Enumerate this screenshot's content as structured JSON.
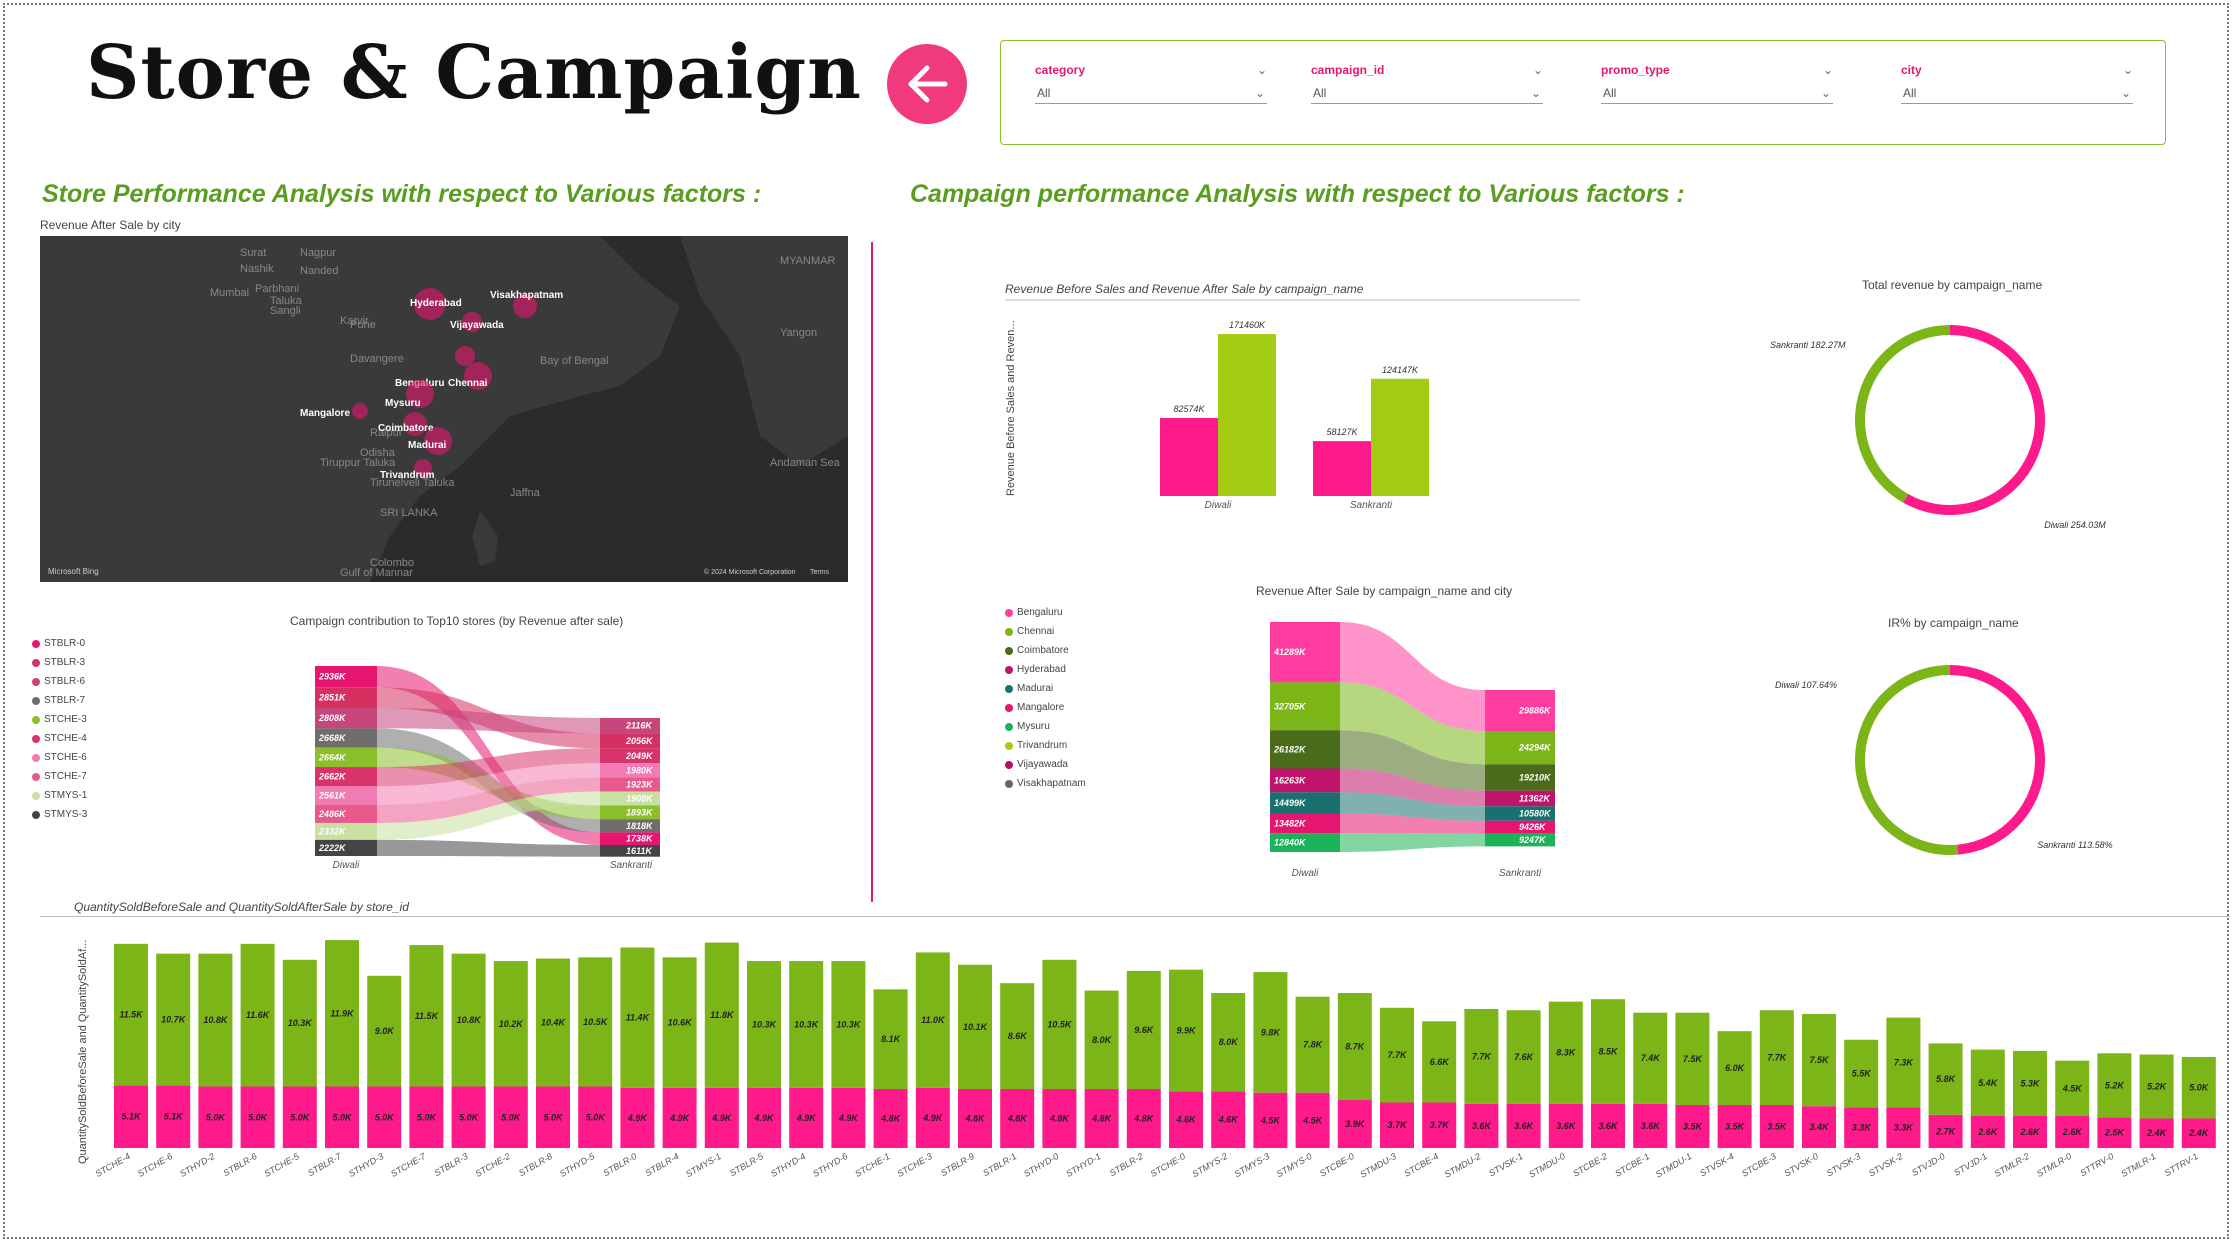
{
  "header": {
    "title": "Store & Campaign",
    "back_icon": "arrow-left-icon"
  },
  "slicers": [
    {
      "label": "category",
      "value": "All"
    },
    {
      "label": "campaign_id",
      "value": "All"
    },
    {
      "label": "promo_type",
      "value": "All"
    },
    {
      "label": "city",
      "value": "All"
    }
  ],
  "sections": {
    "store": "Store Performance Analysis with respect to Various factors :",
    "campaign": "Campaign performance Analysis with respect to Various factors :"
  },
  "map": {
    "title": "Revenue After Sale by city",
    "cities": [
      "Hyderabad",
      "Visakhapatnam",
      "Vijayawada",
      "Bengaluru",
      "Chennai",
      "Mysuru",
      "Mangalore",
      "Coimbatore",
      "Madurai",
      "Trivandrum"
    ],
    "base_labels": [
      "Surat",
      "Nagpur",
      "Nashik",
      "Nanded",
      "Mumbai",
      "Parbhani",
      "Pune",
      "Taluka",
      "Sangli",
      "Karvir",
      "Davangere",
      "Raipur",
      "Odisha",
      "Tiruppur Taluka",
      "Tirunelveli Taluka",
      "SRI LANKA",
      "Colombo",
      "Jaffna",
      "MYANMAR",
      "Yangon",
      "Bay of Bengal",
      "Andaman Sea",
      "Gulf of Mannar"
    ],
    "attribution_left": "Microsoft Bing",
    "attribution_right": "© 2024 Microsoft Corporation",
    "terms": "Terms"
  },
  "chart_data": [
    {
      "id": "top10_stores_ribbon",
      "type": "ribbon",
      "title": "Campaign contribution to Top10 stores (by Revenue after sale)",
      "categories": [
        "Diwali",
        "Sankranti"
      ],
      "legend": [
        "STBLR-0",
        "STBLR-3",
        "STBLR-6",
        "STBLR-7",
        "STCHE-3",
        "STCHE-4",
        "STCHE-6",
        "STCHE-7",
        "STMYS-1",
        "STMYS-3"
      ],
      "colors": [
        "#e6156f",
        "#d63060",
        "#c4467a",
        "#6e6e6e",
        "#8bbf2b",
        "#d8336b",
        "#f27bb3",
        "#e85a8c",
        "#c9e0a3",
        "#444444"
      ],
      "diwali_labels": [
        "2936K",
        "2851K",
        "2808K",
        "2668K",
        "2664K",
        "2662K",
        "2561K",
        "2486K",
        "2332K",
        "2222K"
      ],
      "sankranti_labels": [
        "2116K",
        "2056K",
        "2049K",
        "1980K",
        "1923K",
        "1908K",
        "1893K",
        "1818K",
        "1738K",
        "1611K"
      ],
      "diwali_values": [
        2936,
        2851,
        2808,
        2668,
        2664,
        2662,
        2561,
        2486,
        2332,
        2222
      ],
      "sankranti_values": [
        2116,
        2056,
        2049,
        1980,
        1923,
        1908,
        1893,
        1818,
        1738,
        1611
      ]
    },
    {
      "id": "rev_before_after",
      "type": "bar",
      "title": "Revenue Before Sales and Revenue After Sale by campaign_name",
      "ylabel": "Revenue Before Sales and Reven...",
      "categories": [
        "Diwali",
        "Sankranti"
      ],
      "series": [
        {
          "name": "Revenue Before Sales",
          "color": "#ff1a8c",
          "values": [
            82574,
            58127
          ],
          "labels": [
            "82574K",
            "58127K"
          ]
        },
        {
          "name": "Revenue After Sale",
          "color": "#a4cc14",
          "values": [
            171460,
            124147
          ],
          "labels": [
            "171460K",
            "124147K"
          ]
        }
      ]
    },
    {
      "id": "total_revenue_donut",
      "type": "pie",
      "title": "Total revenue by campaign_name",
      "slices": [
        {
          "label": "Diwali 254.03M",
          "value": 254.03,
          "color": "#ff1a8c"
        },
        {
          "label": "Sankranti 182.27M",
          "value": 182.27,
          "color": "#7cb518"
        }
      ]
    },
    {
      "id": "rev_after_city_ribbon",
      "type": "ribbon",
      "title": "Revenue After Sale by campaign_name and city",
      "categories": [
        "Diwali",
        "Sankranti"
      ],
      "legend": [
        "Bengaluru",
        "Chennai",
        "Coimbatore",
        "Hyderabad",
        "Madurai",
        "Mangalore",
        "Mysuru",
        "Trivandrum",
        "Vijayawada",
        "Visakhapatnam"
      ],
      "colors": [
        "#ff3da0",
        "#7cb518",
        "#4a6b1a",
        "#c0136b",
        "#1a6f6f",
        "#e6156f",
        "#1db25a",
        "#a4cc14",
        "#b8105e",
        "#666666"
      ],
      "diwali_labels": [
        "41289K",
        "32705K",
        "26182K",
        "16263K",
        "14499K",
        "13482K",
        "12840K"
      ],
      "sankranti_labels": [
        "29886K",
        "24294K",
        "19210K",
        "11362K",
        "10580K",
        "9426K",
        "9247K"
      ]
    },
    {
      "id": "ir_donut",
      "type": "pie",
      "title": "IR% by campaign_name",
      "slices": [
        {
          "label": "Diwali 107.64%",
          "value": 107.64,
          "color": "#ff1a8c"
        },
        {
          "label": "Sankranti 113.58%",
          "value": 113.58,
          "color": "#7cb518"
        }
      ]
    },
    {
      "id": "qty_by_store",
      "type": "bar",
      "title": "QuantitySoldBeforeSale and QuantitySoldAfterSale by store_id",
      "ylabel": "QuantitySoldBeforeSale and QuantitySoldAf...",
      "categories": [
        "STCHE-4",
        "STCHE-6",
        "STHYD-2",
        "STBLR-6",
        "STCHE-5",
        "STBLR-7",
        "STHYD-3",
        "STCHE-7",
        "STBLR-3",
        "STCHE-2",
        "STBLR-8",
        "STHYD-5",
        "STBLR-0",
        "STBLR-4",
        "STMYS-1",
        "STBLR-5",
        "STHYD-4",
        "STHYD-6",
        "STCHE-1",
        "STCHE-3",
        "STBLR-9",
        "STBLR-1",
        "STHYD-0",
        "STHYD-1",
        "STBLR-2",
        "STCHE-0",
        "STMYS-2",
        "STMYS-3",
        "STMYS-0",
        "STCBE-0",
        "STMDU-3",
        "STCBE-4",
        "STMDU-2",
        "STVSK-1",
        "STMDU-0",
        "STCBE-2",
        "STCBE-1",
        "STMDU-1",
        "STVSK-4",
        "STCBE-3",
        "STVSK-0",
        "STVSK-3",
        "STVSK-2",
        "STVJD-0",
        "STVJD-1",
        "STMLR-2",
        "STMLR-0",
        "STTRV-0",
        "STMLR-1",
        "STTRV-1"
      ],
      "series": [
        {
          "name": "QuantitySoldBeforeSale",
          "color": "#ff1a8c",
          "labels": [
            "5.1K",
            "5.1K",
            "5.0K",
            "5.0K",
            "5.0K",
            "5.0K",
            "5.0K",
            "5.0K",
            "5.0K",
            "5.0K",
            "5.0K",
            "5.0K",
            "4.9K",
            "4.9K",
            "4.9K",
            "4.9K",
            "4.9K",
            "4.9K",
            "4.8K",
            "4.9K",
            "4.8K",
            "4.8K",
            "4.8K",
            "4.8K",
            "4.8K",
            "4.6K",
            "4.6K",
            "4.5K",
            "4.5K",
            "3.9K",
            "3.7K",
            "3.7K",
            "3.6K",
            "3.6K",
            "3.6K",
            "3.6K",
            "3.6K",
            "3.5K",
            "3.5K",
            "3.5K",
            "3.4K",
            "3.3K",
            "3.3K",
            "2.7K",
            "2.6K",
            "2.6K",
            "2.6K",
            "2.5K",
            "2.4K",
            "2.4K"
          ],
          "values": [
            5.1,
            5.1,
            5.0,
            5.0,
            5.0,
            5.0,
            5.0,
            5.0,
            5.0,
            5.0,
            5.0,
            5.0,
            4.9,
            4.9,
            4.9,
            4.9,
            4.9,
            4.9,
            4.8,
            4.9,
            4.8,
            4.8,
            4.8,
            4.8,
            4.8,
            4.6,
            4.6,
            4.5,
            4.5,
            3.9,
            3.7,
            3.7,
            3.6,
            3.6,
            3.6,
            3.6,
            3.6,
            3.5,
            3.5,
            3.5,
            3.4,
            3.3,
            3.3,
            2.7,
            2.6,
            2.6,
            2.6,
            2.5,
            2.4,
            2.4
          ]
        },
        {
          "name": "QuantitySoldAfterSale",
          "color": "#7cb518",
          "labels": [
            "11.5K",
            "10.7K",
            "10.8K",
            "11.6K",
            "10.3K",
            "11.9K",
            "9.0K",
            "11.5K",
            "10.8K",
            "10.2K",
            "10.4K",
            "10.5K",
            "11.4K",
            "10.6K",
            "11.8K",
            "10.3K",
            "10.3K",
            "10.3K",
            "8.1K",
            "11.0K",
            "10.1K",
            "8.6K",
            "10.5K",
            "8.0K",
            "9.6K",
            "9.9K",
            "8.0K",
            "9.8K",
            "7.8K",
            "8.7K",
            "7.7K",
            "6.6K",
            "7.7K",
            "7.6K",
            "8.3K",
            "8.5K",
            "7.4K",
            "7.5K",
            "6.0K",
            "7.7K",
            "7.5K",
            "5.5K",
            "7.3K",
            "5.8K",
            "5.4K",
            "5.3K",
            "4.5K",
            "5.2K",
            "5.2K",
            "5.0K"
          ],
          "values": [
            11.5,
            10.7,
            10.8,
            11.6,
            10.3,
            11.9,
            9.0,
            11.5,
            10.8,
            10.2,
            10.4,
            10.5,
            11.4,
            10.6,
            11.8,
            10.3,
            10.3,
            10.3,
            8.1,
            11.0,
            10.1,
            8.6,
            10.5,
            8.0,
            9.6,
            9.9,
            8.0,
            9.8,
            7.8,
            8.7,
            7.7,
            6.6,
            7.7,
            7.6,
            8.3,
            8.5,
            7.4,
            7.5,
            6.0,
            7.7,
            7.5,
            5.5,
            7.3,
            5.8,
            5.4,
            5.3,
            4.5,
            5.2,
            5.2,
            5.0
          ]
        }
      ]
    }
  ]
}
